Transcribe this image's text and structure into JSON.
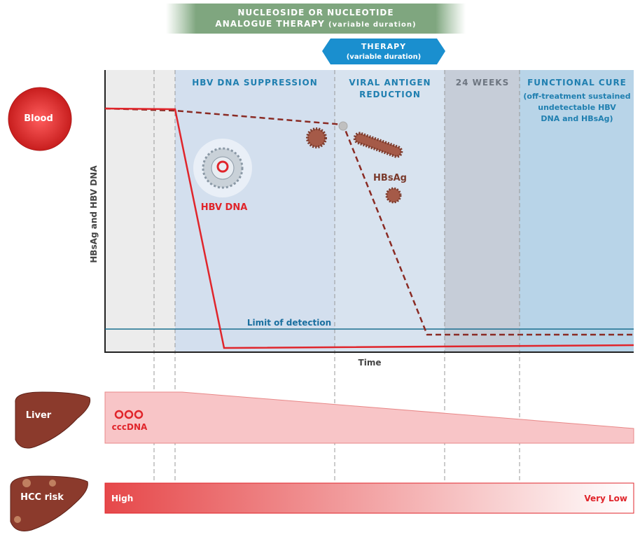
{
  "banner": {
    "lines": [
      "NUCLEOSIDE OR NUCLEOTIDE",
      "ANALOGUE THERAPY"
    ],
    "note": "(variable duration)"
  },
  "therapy": {
    "title": "THERAPY",
    "note": "(variable duration)"
  },
  "phases": [
    {
      "title": [
        "HBV DNA SUPPRESSION"
      ]
    },
    {
      "title": [
        "VIRAL ANTIGEN",
        "REDUCTION"
      ]
    },
    {
      "title": [
        "24 WEEKS"
      ]
    },
    {
      "title": [
        "FUNCTIONAL CURE"
      ],
      "note": [
        "(off-treatment sustained",
        "undetectable HBV",
        "DNA and HBsAg)"
      ]
    }
  ],
  "blood": {
    "label": "Blood",
    "y_axis": "HBsAg and HBV DNA",
    "x_axis": "Time",
    "hbv_dna": "HBV DNA",
    "hbsag": "HBsAg",
    "limit": "Limit of detection"
  },
  "liver": {
    "label": "Liver",
    "cccdna": "cccDNA"
  },
  "hcc": {
    "label": "HCC risk",
    "high": "High",
    "low": "Very Low"
  }
}
